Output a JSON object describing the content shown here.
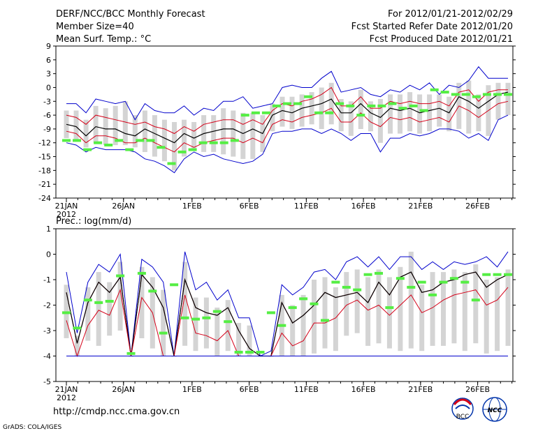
{
  "header": {
    "title": "DERF/NCC/BCC Monthly Forecast",
    "member_size": "Member Size=40",
    "variable": "Mean Surf. Temp.: °C",
    "forecast_period": "For 2012/01/21-2012/02/29",
    "start_date": "Fcst Started Refer Date 2012/01/20",
    "produced_date": "Fcst Produced Date 2012/01/21"
  },
  "footer": {
    "url": "http://cmdp.ncc.cma.gov.cn",
    "credit": "GrADS: COLA/IGES",
    "logo_bcc": "BCC",
    "logo_ncc": "NCC"
  },
  "colors": {
    "bar": "#d4d4d4",
    "outer": "#0000cc",
    "inner": "#d40018",
    "median": "#000000",
    "obs": "#55ee44"
  },
  "chart_data": [
    {
      "type": "box-range",
      "panel": "temperature",
      "title": "Mean Surf. Temp.: °C",
      "xlabel": "",
      "ylabel": "°C",
      "ylim": [
        -24,
        9
      ],
      "yticks": [
        9,
        6,
        3,
        0,
        -3,
        -6,
        -9,
        -12,
        -15,
        -18,
        -21,
        -24
      ],
      "xlim": [
        0,
        40
      ],
      "xticks": [
        {
          "day": 0,
          "label": "21JAN",
          "sub": "2012"
        },
        {
          "day": 5,
          "label": "26JAN"
        },
        {
          "day": 11,
          "label": "1FEB"
        },
        {
          "day": 16,
          "label": "6FEB"
        },
        {
          "day": 21,
          "label": "11FEB"
        },
        {
          "day": 26,
          "label": "16FEB"
        },
        {
          "day": 31,
          "label": "21FEB"
        },
        {
          "day": 36,
          "label": "26FEB"
        }
      ],
      "series": [
        {
          "name": "max",
          "color": "outer",
          "values": [
            -3.5,
            -3.5,
            -5.5,
            -2.5,
            -3,
            -3.5,
            -3,
            -7,
            -3.5,
            -5,
            -5.5,
            -5.5,
            -4,
            -6,
            -4.5,
            -5,
            -3,
            -3,
            -2,
            -4.5,
            -4,
            -3.5,
            0,
            0.5,
            0,
            0,
            2,
            3.5,
            -1,
            -0.5,
            0,
            -1.5,
            -2,
            -0.5,
            -1,
            0.5,
            -0.5,
            1,
            -1.5,
            0.5,
            0,
            1.5,
            4.5,
            2,
            2,
            2
          ]
        },
        {
          "name": "upper",
          "color": "inner",
          "values": [
            -6,
            -6.5,
            -8,
            -6,
            -6.5,
            -7,
            -7.5,
            -8,
            -7.5,
            -8.5,
            -9,
            -10,
            -8.5,
            -9.5,
            -8,
            -7.5,
            -7,
            -7,
            -8,
            -7,
            -8,
            -5,
            -3.5,
            -4,
            -3,
            -2.5,
            -1.5,
            0,
            -4,
            -4,
            -2,
            -4.5,
            -4.5,
            -3,
            -3.5,
            -3,
            -3.5,
            -3.5,
            -3,
            -4,
            -1,
            -0.5,
            -3,
            -1,
            -0.5,
            -0.5
          ]
        },
        {
          "name": "median",
          "color": "median",
          "values": [
            -8,
            -8.5,
            -10.5,
            -8.5,
            -9,
            -9,
            -10,
            -10.5,
            -9,
            -10,
            -11,
            -12,
            -10,
            -11,
            -10,
            -9.5,
            -9,
            -9,
            -10,
            -9,
            -10,
            -6,
            -5,
            -5.5,
            -4.5,
            -4,
            -3.5,
            -2.5,
            -5.5,
            -5.5,
            -3.5,
            -5.5,
            -6.5,
            -4.5,
            -5,
            -4.5,
            -5.5,
            -5,
            -4.5,
            -5.5,
            -2,
            -3,
            -4.5,
            -3,
            -1.5,
            -1
          ]
        },
        {
          "name": "lower",
          "color": "inner",
          "values": [
            -9.5,
            -10,
            -12,
            -10.5,
            -10.5,
            -11,
            -12,
            -12,
            -11,
            -12,
            -13,
            -14,
            -12,
            -13,
            -12,
            -11.5,
            -11,
            -11,
            -12,
            -11,
            -12,
            -8,
            -7,
            -7.5,
            -6.5,
            -6,
            -5.5,
            -4.5,
            -7.5,
            -7.5,
            -5.5,
            -7.5,
            -8.5,
            -6.5,
            -7,
            -6.5,
            -7.5,
            -7,
            -6.5,
            -7.5,
            -4,
            -5,
            -6.5,
            -5,
            -3.5,
            -3
          ]
        },
        {
          "name": "min",
          "color": "outer",
          "values": [
            -12,
            -12.5,
            -14,
            -13,
            -13.5,
            -13.5,
            -13.5,
            -14,
            -15.5,
            -16,
            -17,
            -18.5,
            -15.5,
            -14,
            -15,
            -14.5,
            -15.5,
            -16,
            -16.5,
            -16,
            -14.5,
            -10,
            -9.5,
            -9.5,
            -9,
            -9,
            -10,
            -9,
            -10,
            -11.5,
            -10,
            -10,
            -14,
            -11,
            -11,
            -10,
            -10.5,
            -10,
            -9,
            -9,
            -9.5,
            -11,
            -10,
            -11.5,
            -7,
            -6
          ]
        },
        {
          "name": "bar_top",
          "color": "bar",
          "values": [
            -5,
            -5,
            -7,
            -4,
            -4.5,
            -4,
            -3,
            -6,
            -5,
            -6,
            -7,
            -7.5,
            -7,
            -7.5,
            -6,
            -6,
            -4.5,
            -5,
            -5.5,
            -5.5,
            -6,
            -3.5,
            -2,
            -2,
            -1.5,
            -1,
            0,
            1,
            -2.5,
            -3,
            -0.5,
            -3,
            -2.5,
            -1.5,
            -1.5,
            -1,
            -1.5,
            -1.5,
            -1.5,
            -2,
            1,
            1.5,
            -1.5,
            0.5,
            1,
            1
          ]
        },
        {
          "name": "bar_bottom",
          "color": "bar",
          "values": [
            -11,
            -11.5,
            -13,
            -12,
            -12.5,
            -12.5,
            -12.5,
            -13,
            -14,
            -15,
            -16,
            -18,
            -15,
            -13.5,
            -14,
            -14,
            -14.5,
            -15,
            -15.5,
            -15.5,
            -14,
            -9.5,
            -8.5,
            -9,
            -8.5,
            -8,
            -9,
            -8,
            -9.5,
            -10.5,
            -9,
            -9.5,
            -12,
            -10,
            -10,
            -9.5,
            -10,
            -9.5,
            -8.5,
            -9.5,
            -9,
            -10,
            -9.5,
            -10.5,
            -7,
            -6
          ]
        },
        {
          "name": "observed",
          "color": "obs",
          "values": [
            -11.5,
            -11.5,
            -13.5,
            -12,
            -12.5,
            -11.5,
            -13.5,
            -11.5,
            -11.5,
            -13,
            -16.5,
            -14,
            -13.5,
            -12,
            -12,
            -12,
            -11.5,
            -6,
            -5.5,
            -5.5,
            -4,
            -3.5,
            -3.5,
            -2,
            -5.5,
            -5.5,
            -3.5,
            -4,
            -6,
            -4,
            -4,
            -3.5,
            -4.5,
            -4,
            -5,
            -0.5,
            -1,
            -1.5,
            -1.5,
            -2,
            -1.5,
            -1.5,
            -1.5
          ]
        }
      ]
    },
    {
      "type": "box-range",
      "panel": "precipitation",
      "title": "Prec.: log(mm/d)",
      "xlabel": "",
      "ylabel": "log(mm/d)",
      "ylim": [
        -5,
        1
      ],
      "yticks": [
        1,
        0,
        -1,
        -2,
        -3,
        -4,
        -5
      ],
      "xlim": [
        0,
        40
      ],
      "xticks": [
        {
          "day": 0,
          "label": "21JAN",
          "sub": "2012"
        },
        {
          "day": 5,
          "label": "26JAN"
        },
        {
          "day": 11,
          "label": "1FEB"
        },
        {
          "day": 16,
          "label": "6FEB"
        },
        {
          "day": 21,
          "label": "11FEB"
        },
        {
          "day": 26,
          "label": "16FEB"
        },
        {
          "day": 31,
          "label": "21FEB"
        },
        {
          "day": 36,
          "label": "26FEB"
        }
      ],
      "series": [
        {
          "name": "max",
          "color": "outer",
          "values": [
            -0.7,
            -3.1,
            -1.1,
            -0.4,
            -0.7,
            0,
            -4,
            -0.2,
            -0.5,
            -1.1,
            -4,
            0.1,
            -1.4,
            -1.1,
            -1.8,
            -1.4,
            -2.5,
            -2.5,
            -4,
            -3.8,
            -1.2,
            -1.6,
            -1.3,
            -0.7,
            -0.6,
            -1,
            -0.3,
            -0.1,
            -0.5,
            -0.1,
            -0.6,
            -0.1,
            -0.1,
            -0.6,
            -0.3,
            -0.6,
            -0.3,
            -0.4,
            -0.3,
            -0.1,
            -0.5,
            0.1
          ]
        },
        {
          "name": "upper",
          "color": "inner",
          "values": [
            -1.5,
            -3.5,
            -1.9,
            -1.1,
            -1.5,
            -0.9,
            -4,
            -0.8,
            -1.3,
            -2.1,
            -4,
            -1,
            -2.1,
            -2.3,
            -2.4,
            -2.1,
            -3,
            -3.7,
            -4,
            -4,
            -1.9,
            -2.7,
            -2.4,
            -2,
            -1.5,
            -1.7,
            -1.6,
            -1.5,
            -1.9,
            -1.1,
            -1.6,
            -0.9,
            -0.7,
            -1.5,
            -1.4,
            -1.1,
            -1,
            -0.8,
            -0.7,
            -1.3,
            -1,
            -0.8
          ]
        },
        {
          "name": "median",
          "color": "median",
          "values": [
            -1.5,
            -3.5,
            -1.9,
            -1.1,
            -1.5,
            -0.9,
            -4,
            -0.8,
            -1.3,
            -2.1,
            -4,
            -1,
            -2.1,
            -2.3,
            -2.4,
            -2.1,
            -3,
            -3.7,
            -4,
            -4,
            -1.9,
            -2.7,
            -2.4,
            -2,
            -1.5,
            -1.7,
            -1.6,
            -1.5,
            -1.9,
            -1.1,
            -1.6,
            -0.9,
            -0.7,
            -1.5,
            -1.4,
            -1.1,
            -1,
            -0.8,
            -0.7,
            -1.3,
            -1,
            -0.8
          ]
        },
        {
          "name": "lower",
          "color": "inner",
          "values": [
            -2.6,
            -4,
            -2.8,
            -2.2,
            -2.4,
            -1.4,
            -4,
            -1.7,
            -2.3,
            -4,
            -4,
            -1.6,
            -3.1,
            -3.2,
            -3.4,
            -3,
            -4,
            -4,
            -4,
            -4,
            -3.1,
            -3.6,
            -3.4,
            -2.7,
            -2.7,
            -2.5,
            -2,
            -1.8,
            -2.2,
            -2,
            -2.4,
            -2,
            -1.6,
            -2.3,
            -2.1,
            -1.8,
            -1.6,
            -1.5,
            -1.4,
            -2,
            -1.8,
            -1.3
          ]
        },
        {
          "name": "min",
          "color": "outer",
          "values": [
            -4,
            -4,
            -4,
            -4,
            -4,
            -4,
            -4,
            -4,
            -4,
            -4,
            -4,
            -4,
            -4,
            -4,
            -4,
            -4,
            -4,
            -4,
            -4,
            -4,
            -4,
            -4,
            -4,
            -4,
            -4,
            -4,
            -4,
            -4,
            -4,
            -4,
            -4,
            -4,
            -4,
            -4,
            -4,
            -4,
            -4,
            -4,
            -4,
            -4,
            -4,
            -4
          ]
        },
        {
          "name": "bar_top",
          "color": "bar",
          "values": [
            -1.2,
            -3.2,
            -1.3,
            -0.7,
            -1.1,
            -0.3,
            -4,
            -0.5,
            -0.9,
            -1.4,
            -4,
            -0.3,
            -1.7,
            -1.7,
            -2.1,
            -1.8,
            -2.7,
            -2.8,
            -4,
            -4,
            -1.6,
            -2,
            -1.6,
            -1,
            -0.9,
            -1.3,
            -0.7,
            -0.6,
            -0.9,
            -0.6,
            -0.9,
            -0.5,
            0.1,
            -1.2,
            -0.7,
            -0.7,
            -0.6,
            -0.7,
            -0.4,
            -1,
            -0.9,
            -0.6
          ]
        },
        {
          "name": "bar_bottom",
          "color": "bar",
          "values": [
            -3.3,
            -4,
            -3.4,
            -3.6,
            -3.2,
            -3,
            -4,
            -3.3,
            -3.7,
            -4,
            -4,
            -3.6,
            -3.8,
            -3.7,
            -4,
            -3.8,
            -4,
            -4,
            -4,
            -4,
            -4,
            -4,
            -4,
            -3.9,
            -3.7,
            -3.8,
            -3.2,
            -3.1,
            -3.6,
            -3.5,
            -3.7,
            -3.8,
            -3.7,
            -3.8,
            -3.6,
            -3.6,
            -3.5,
            -3.8,
            -3.5,
            -3.9,
            -3.8,
            -3.6
          ]
        },
        {
          "name": "observed",
          "color": "obs",
          "values": [
            -2.3,
            -2.9,
            -1.8,
            -1.9,
            -1.85,
            -0.85,
            -3.9,
            -0.75,
            -1.45,
            -3.1,
            -1.2,
            -2.5,
            -2.55,
            -2.5,
            -2.25,
            -2.65,
            -3.85,
            -3.85,
            -3.85,
            -2.3,
            -2.8,
            -2.1,
            -1.75,
            -1.95,
            -2.6,
            -1.1,
            -1.3,
            -1.4,
            -0.8,
            -0.75,
            -2.1,
            -0.95,
            -1.3,
            -1.1,
            -1.6,
            -1.1,
            -0.95,
            -1.1,
            -1.8,
            -0.8,
            -0.8,
            -0.8
          ]
        }
      ]
    }
  ]
}
